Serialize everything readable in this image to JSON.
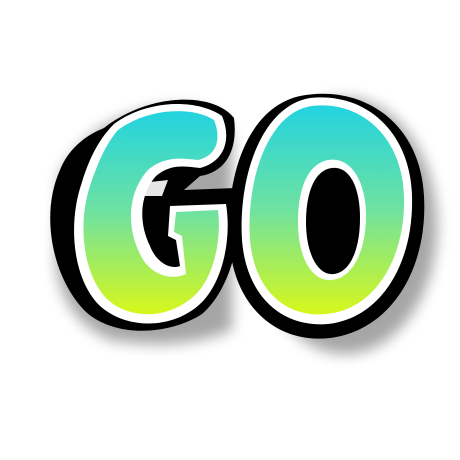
{
  "logo": {
    "text": "GO",
    "colors": {
      "gradient_top": "#22d3e0",
      "gradient_mid": "#6fe2a0",
      "gradient_bottom": "#d8f71a",
      "outline": "#000000",
      "highlight": "#ffffff"
    }
  }
}
